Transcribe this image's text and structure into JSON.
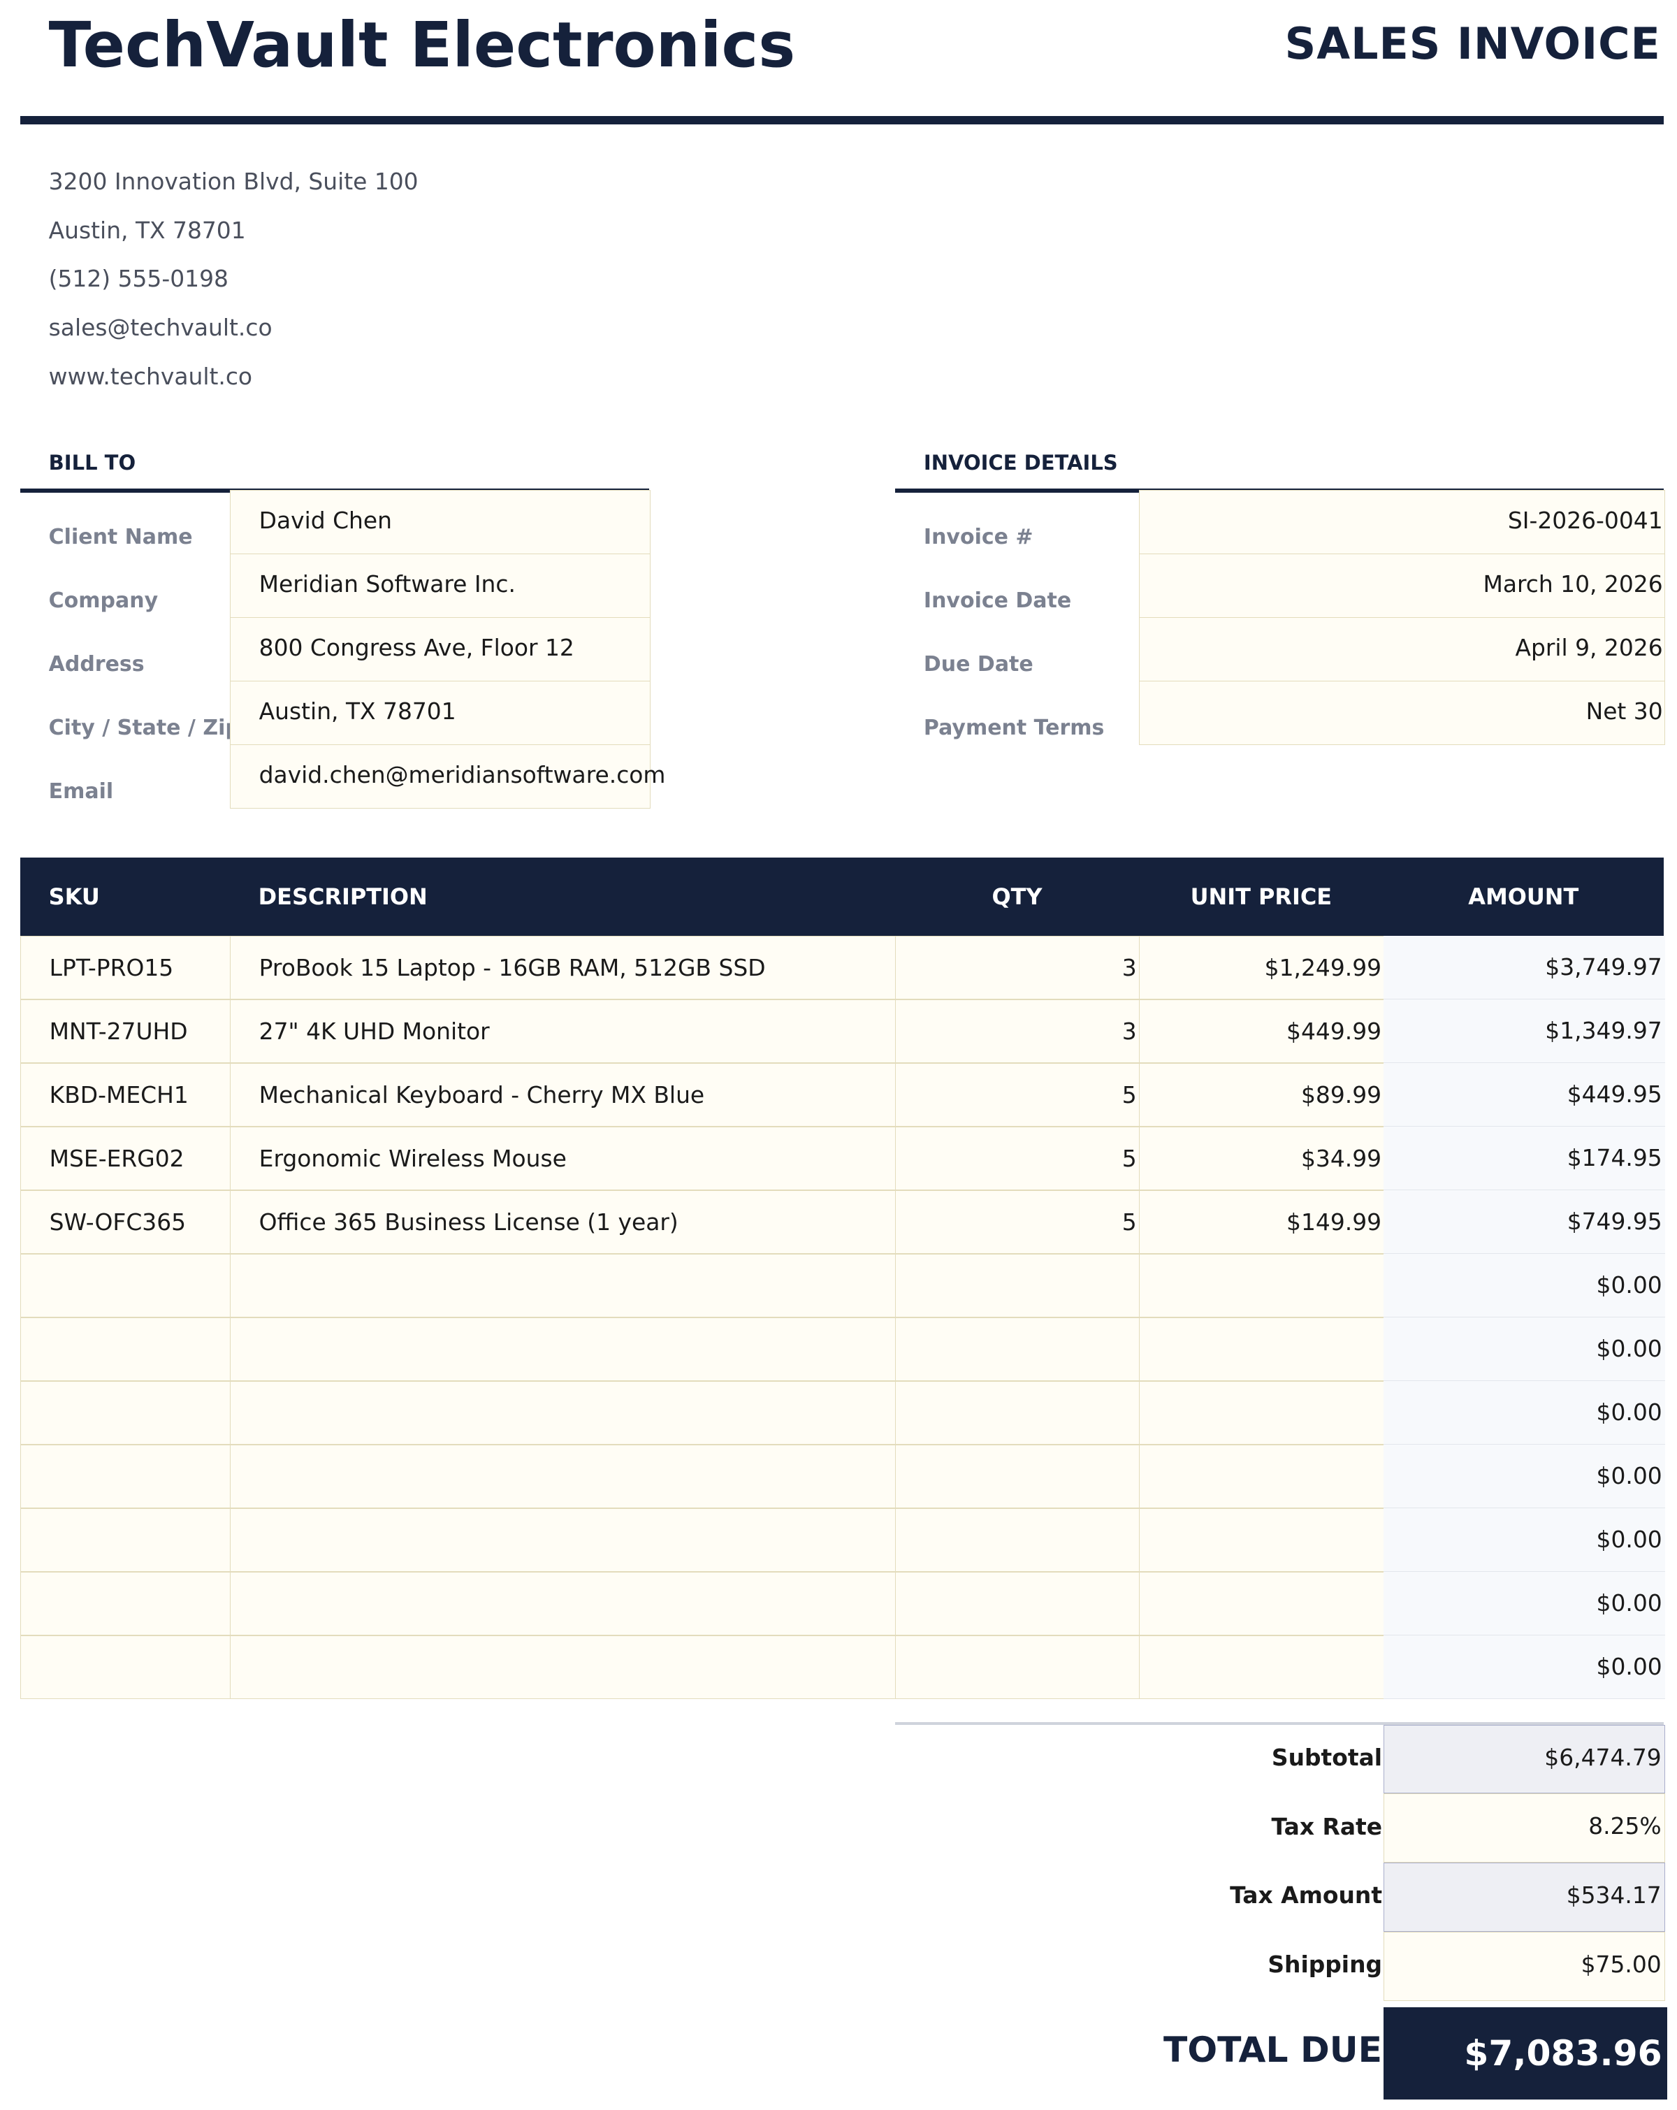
{
  "header": {
    "company": "TechVault Electronics",
    "doc_type": "SALES INVOICE"
  },
  "seller": {
    "lines": [
      "3200 Innovation Blvd, Suite 100",
      "Austin, TX 78701",
      "(512) 555-0198",
      "sales@techvault.co",
      "www.techvault.co"
    ]
  },
  "bill_to": {
    "title": "BILL TO",
    "fields": [
      {
        "label": "Client Name",
        "value": "David Chen"
      },
      {
        "label": "Company",
        "value": "Meridian Software Inc."
      },
      {
        "label": "Address",
        "value": "800 Congress Ave, Floor 12"
      },
      {
        "label": "City / State / Zip",
        "value": "Austin, TX 78701"
      },
      {
        "label": "Email",
        "value": "david.chen@meridiansoftware.com"
      }
    ]
  },
  "invoice_details": {
    "title": "INVOICE DETAILS",
    "fields": [
      {
        "label": "Invoice #",
        "value": "SI-2026-0041"
      },
      {
        "label": "Invoice Date",
        "value": "March 10, 2026"
      },
      {
        "label": "Due Date",
        "value": "April 9, 2026"
      },
      {
        "label": "Payment Terms",
        "value": "Net 30"
      }
    ]
  },
  "items": {
    "columns": [
      "SKU",
      "DESCRIPTION",
      "QTY",
      "UNIT PRICE",
      "AMOUNT"
    ],
    "rows": [
      {
        "sku": "LPT-PRO15",
        "desc": "ProBook 15 Laptop - 16GB RAM, 512GB SSD",
        "qty": "3",
        "price": "$1,249.99",
        "amount": "$3,749.97"
      },
      {
        "sku": "MNT-27UHD",
        "desc": "27\" 4K UHD Monitor",
        "qty": "3",
        "price": "$449.99",
        "amount": "$1,349.97"
      },
      {
        "sku": "KBD-MECH1",
        "desc": "Mechanical Keyboard - Cherry MX Blue",
        "qty": "5",
        "price": "$89.99",
        "amount": "$449.95"
      },
      {
        "sku": "MSE-ERG02",
        "desc": "Ergonomic Wireless Mouse",
        "qty": "5",
        "price": "$34.99",
        "amount": "$174.95"
      },
      {
        "sku": "SW-OFC365",
        "desc": "Office 365 Business License (1 year)",
        "qty": "5",
        "price": "$149.99",
        "amount": "$749.95"
      },
      {
        "sku": "",
        "desc": "",
        "qty": "",
        "price": "",
        "amount": "$0.00"
      },
      {
        "sku": "",
        "desc": "",
        "qty": "",
        "price": "",
        "amount": "$0.00"
      },
      {
        "sku": "",
        "desc": "",
        "qty": "",
        "price": "",
        "amount": "$0.00"
      },
      {
        "sku": "",
        "desc": "",
        "qty": "",
        "price": "",
        "amount": "$0.00"
      },
      {
        "sku": "",
        "desc": "",
        "qty": "",
        "price": "",
        "amount": "$0.00"
      },
      {
        "sku": "",
        "desc": "",
        "qty": "",
        "price": "",
        "amount": "$0.00"
      },
      {
        "sku": "",
        "desc": "",
        "qty": "",
        "price": "",
        "amount": "$0.00"
      }
    ]
  },
  "totals": {
    "subtotal_label": "Subtotal",
    "subtotal": "$6,474.79",
    "tax_rate_label": "Tax Rate",
    "tax_rate": "8.25%",
    "tax_amount_label": "Tax Amount",
    "tax_amount": "$534.17",
    "shipping_label": "Shipping",
    "shipping": "$75.00",
    "total_label": "TOTAL DUE",
    "total": "$7,083.96"
  },
  "colors": {
    "navy": "#15213b",
    "input_fill": "#fffdf5",
    "input_border": "#e3dcbc",
    "calc_fill": "#eeeff4"
  }
}
